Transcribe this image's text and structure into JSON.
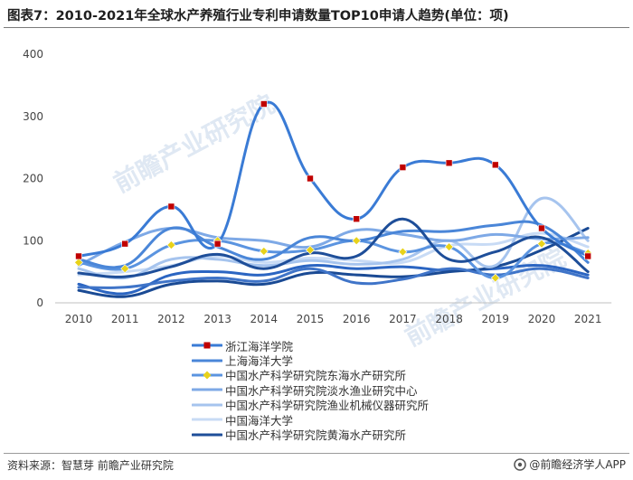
{
  "page": {
    "title": "图表7：2010-2021年全球水产养殖行业专利申请数量TOP10申请人趋势(单位：项)",
    "source": "资料来源：智慧芽 前瞻产业研究院",
    "brand": "@前瞻经济学人APP",
    "watermark": "前瞻产业研究院"
  },
  "chart_data": {
    "type": "line",
    "title": "",
    "xlabel": "",
    "ylabel": "",
    "ylim": [
      0,
      400
    ],
    "yticks": [
      0,
      100,
      200,
      300,
      400
    ],
    "grid": false,
    "legend_position": "bottom",
    "x": [
      "2010",
      "2011",
      "2012",
      "2013",
      "2014",
      "2015",
      "2016",
      "2017",
      "2018",
      "2019",
      "2020",
      "2021"
    ],
    "series": [
      {
        "name": "浙江海洋学院",
        "color": "#3a7bd5",
        "marker": "square",
        "marker_color": "#c00000",
        "values": [
          75,
          95,
          155,
          95,
          320,
          200,
          135,
          218,
          225,
          222,
          120,
          75
        ]
      },
      {
        "name": "上海海洋大学",
        "color": "#4a86d8",
        "marker": "none",
        "values": [
          70,
          60,
          120,
          90,
          70,
          105,
          100,
          115,
          115,
          125,
          125,
          65
        ]
      },
      {
        "name": "中国水产科学研究院东海水产研究所",
        "color": "#5b94e0",
        "marker": "diamond",
        "marker_color": "#e8d21a",
        "values": [
          65,
          55,
          93,
          100,
          83,
          85,
          100,
          82,
          90,
          40,
          95,
          80
        ]
      },
      {
        "name": "中国水产科学研究院淡水渔业研究中心",
        "color": "#7ea9e6",
        "marker": "none",
        "values": [
          60,
          98,
          120,
          105,
          100,
          90,
          117,
          110,
          100,
          110,
          103,
          105
        ]
      },
      {
        "name": "中国水产科学研究院渔业机械仪器研究所",
        "color": "#a6c4ee",
        "marker": "none",
        "values": [
          55,
          40,
          70,
          70,
          60,
          68,
          62,
          70,
          100,
          60,
          168,
          100
        ]
      },
      {
        "name": "中国海洋大学",
        "color": "#c8dbf5",
        "marker": "none",
        "values": [
          45,
          50,
          60,
          75,
          65,
          72,
          68,
          65,
          92,
          95,
          112,
          90
        ]
      },
      {
        "name": "中国水产科学研究院黄海水产研究所",
        "color": "#1e4e99",
        "marker": "none",
        "values": [
          48,
          42,
          58,
          78,
          55,
          80,
          75,
          135,
          70,
          82,
          105,
          50
        ]
      }
    ],
    "extra_unlabeled_series": [
      {
        "color": "#2b65c2",
        "values": [
          30,
          15,
          45,
          50,
          45,
          60,
          55,
          58,
          52,
          55,
          60,
          45
        ]
      },
      {
        "color": "#1a4a94",
        "values": [
          20,
          10,
          30,
          35,
          30,
          48,
          45,
          42,
          50,
          58,
          85,
          120
        ]
      },
      {
        "color": "#3f74c8",
        "values": [
          25,
          25,
          35,
          40,
          35,
          55,
          32,
          38,
          55,
          45,
          55,
          40
        ]
      }
    ]
  }
}
